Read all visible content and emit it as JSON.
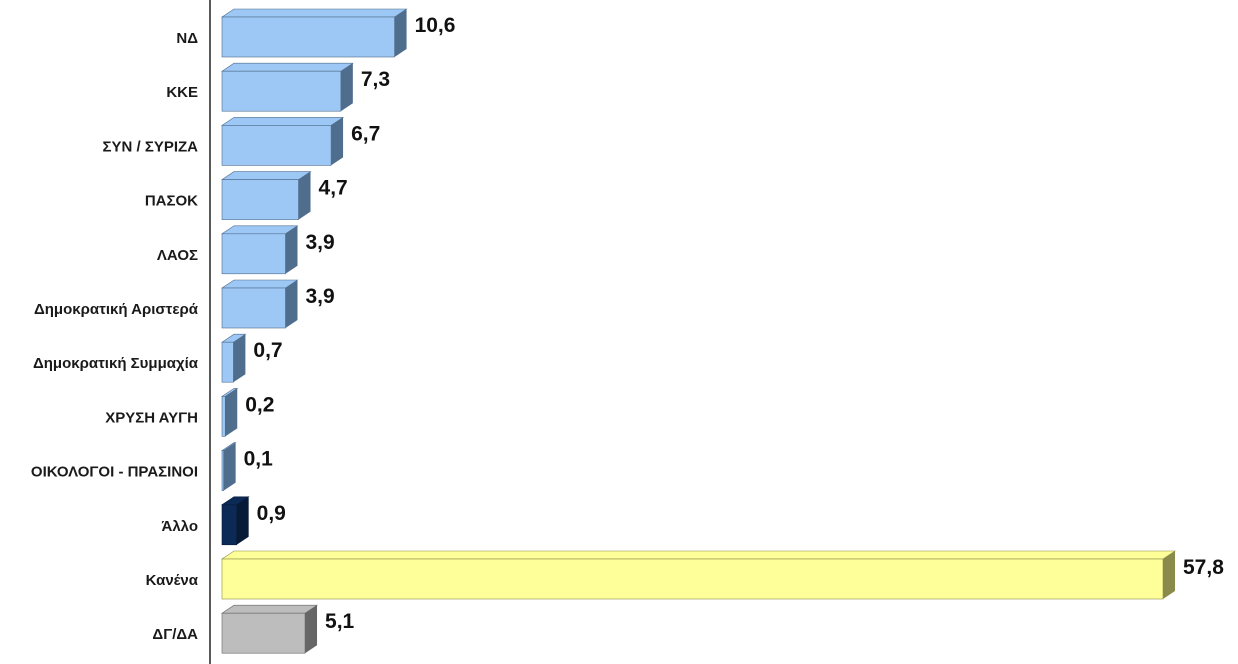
{
  "chart_data": {
    "type": "bar",
    "orientation": "horizontal",
    "categories": [
      "ΝΔ",
      "ΚΚΕ",
      "ΣΥΝ / ΣΥΡΙΖΑ",
      "ΠΑΣΟΚ",
      "ΛΑΟΣ",
      "Δημοκρατική Αριστερά",
      "Δημοκρατική Συμμαχία",
      "ΧΡΥΣΗ ΑΥΓΗ",
      "ΟΙΚΟΛΟΓΟΙ - ΠΡΑΣΙΝΟΙ",
      "Άλλο",
      "Κανένα",
      "ΔΓ/ΔΑ"
    ],
    "values": [
      10.6,
      7.3,
      6.7,
      4.7,
      3.9,
      3.9,
      0.7,
      0.2,
      0.1,
      0.9,
      57.8,
      5.1
    ],
    "value_labels": [
      "10,6",
      "7,3",
      "6,7",
      "4,7",
      "3,9",
      "3,9",
      "0,7",
      "0,2",
      "0,1",
      "0,9",
      "57,8",
      "5,1"
    ],
    "bar_colors": [
      "#9dc8f5",
      "#9dc8f5",
      "#9dc8f5",
      "#9dc8f5",
      "#9dc8f5",
      "#9dc8f5",
      "#9dc8f5",
      "#9dc8f5",
      "#9dc8f5",
      "#0b2a55",
      "#ffff99",
      "#bdbdbd"
    ],
    "side_colors": [
      "#4f6d8c",
      "#4f6d8c",
      "#4f6d8c",
      "#4f6d8c",
      "#4f6d8c",
      "#4f6d8c",
      "#4f6d8c",
      "#4f6d8c",
      "#4f6d8c",
      "#071a36",
      "#8a8a4a",
      "#666666"
    ],
    "xlim": [
      0,
      60
    ],
    "grid": false,
    "legend": "none"
  }
}
